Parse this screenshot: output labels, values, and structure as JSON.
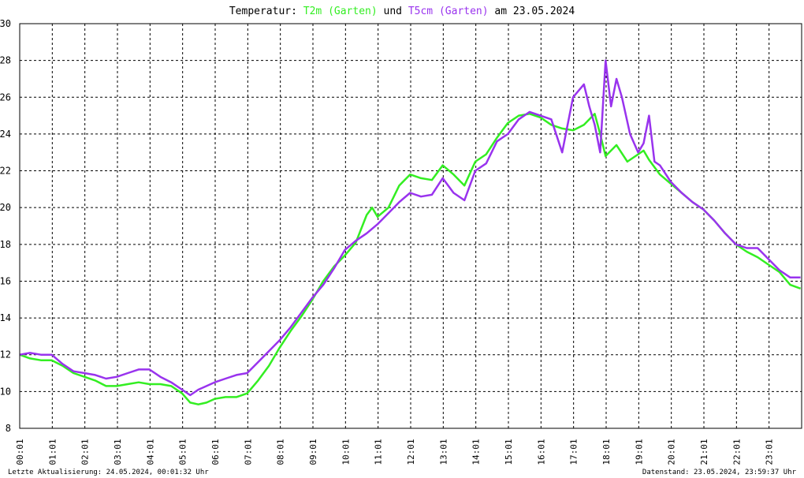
{
  "chart_data": {
    "type": "line",
    "title": {
      "prefix": "Temperatur:",
      "series1": "T2m (Garten)",
      "connector": "und",
      "series2": "T5cm (Garten)",
      "suffix": "am 23.05.2024"
    },
    "xlabel": "",
    "ylabel": "",
    "ylim": [
      8,
      30
    ],
    "xlim": [
      "00:01",
      "24:01"
    ],
    "yticks": [
      "8",
      "10",
      "12",
      "14",
      "16",
      "18",
      "20",
      "22",
      "24",
      "26",
      "28",
      "30"
    ],
    "xticks": [
      "00:01",
      "01:01",
      "02:01",
      "03:01",
      "04:01",
      "05:01",
      "06:01",
      "07:01",
      "08:01",
      "09:01",
      "10:01",
      "11:01",
      "12:01",
      "13:01",
      "14:01",
      "15:01",
      "16:01",
      "17:01",
      "18:01",
      "19:01",
      "20:01",
      "21:01",
      "22:01",
      "23:01"
    ],
    "grid": true,
    "colors": {
      "T2m (Garten)": "#33ee22",
      "T5cm (Garten)": "#9933ee"
    },
    "series": [
      {
        "name": "T2m (Garten)",
        "x": [
          "00:01",
          "00:20",
          "00:40",
          "01:00",
          "01:20",
          "01:40",
          "02:00",
          "02:20",
          "02:40",
          "03:00",
          "03:20",
          "03:40",
          "04:00",
          "04:20",
          "04:40",
          "05:00",
          "05:15",
          "05:30",
          "05:45",
          "06:00",
          "06:20",
          "06:40",
          "07:00",
          "07:20",
          "07:40",
          "08:00",
          "08:20",
          "08:40",
          "09:00",
          "09:20",
          "09:40",
          "10:00",
          "10:20",
          "10:40",
          "10:50",
          "11:00",
          "11:20",
          "11:40",
          "12:00",
          "12:20",
          "12:40",
          "13:00",
          "13:20",
          "13:40",
          "14:00",
          "14:20",
          "14:40",
          "15:00",
          "15:20",
          "15:40",
          "16:00",
          "16:20",
          "16:40",
          "17:00",
          "17:20",
          "17:40",
          "17:50",
          "18:00",
          "18:20",
          "18:40",
          "19:00",
          "19:10",
          "19:20",
          "19:40",
          "20:00",
          "20:20",
          "20:40",
          "21:00",
          "21:20",
          "21:40",
          "22:00",
          "22:20",
          "22:40",
          "23:00",
          "23:20",
          "23:40",
          "23:59"
        ],
        "values": [
          12.0,
          11.8,
          11.7,
          11.7,
          11.4,
          11.0,
          10.8,
          10.6,
          10.3,
          10.3,
          10.4,
          10.5,
          10.4,
          10.4,
          10.3,
          9.9,
          9.4,
          9.3,
          9.4,
          9.6,
          9.7,
          9.7,
          9.9,
          10.6,
          11.4,
          12.4,
          13.3,
          14.1,
          15.0,
          16.0,
          16.8,
          17.4,
          18.1,
          19.6,
          20.0,
          19.5,
          20.0,
          21.2,
          21.8,
          21.6,
          21.5,
          22.3,
          21.8,
          21.2,
          22.5,
          22.9,
          23.8,
          24.6,
          25.0,
          25.1,
          24.9,
          24.5,
          24.3,
          24.2,
          24.5,
          25.1,
          24.0,
          22.8,
          23.4,
          22.5,
          22.9,
          23.1,
          22.6,
          21.8,
          21.3,
          20.8,
          20.3,
          19.9,
          19.3,
          18.6,
          18.0,
          17.6,
          17.3,
          16.9,
          16.5,
          15.8,
          15.6
        ]
      },
      {
        "name": "T5cm (Garten)",
        "x": [
          "00:01",
          "00:20",
          "00:40",
          "01:00",
          "01:20",
          "01:40",
          "02:00",
          "02:20",
          "02:40",
          "03:00",
          "03:20",
          "03:40",
          "04:00",
          "04:20",
          "04:40",
          "05:00",
          "05:15",
          "05:30",
          "05:45",
          "06:00",
          "06:20",
          "06:40",
          "07:00",
          "07:20",
          "07:40",
          "08:00",
          "08:20",
          "08:40",
          "09:00",
          "09:20",
          "09:40",
          "10:00",
          "10:20",
          "10:40",
          "11:00",
          "11:20",
          "11:40",
          "12:00",
          "12:20",
          "12:40",
          "13:00",
          "13:20",
          "13:40",
          "14:00",
          "14:20",
          "14:40",
          "15:00",
          "15:20",
          "15:40",
          "16:00",
          "16:20",
          "16:40",
          "17:00",
          "17:20",
          "17:30",
          "17:40",
          "17:50",
          "18:00",
          "18:10",
          "18:20",
          "18:30",
          "18:45",
          "19:00",
          "19:10",
          "19:20",
          "19:30",
          "19:40",
          "20:00",
          "20:20",
          "20:40",
          "21:00",
          "21:20",
          "21:40",
          "22:00",
          "22:20",
          "22:40",
          "23:00",
          "23:20",
          "23:40",
          "23:59"
        ],
        "values": [
          12.0,
          12.1,
          12.0,
          12.0,
          11.5,
          11.1,
          11.0,
          10.9,
          10.7,
          10.8,
          11.0,
          11.2,
          11.2,
          10.8,
          10.5,
          10.1,
          9.8,
          10.1,
          10.3,
          10.5,
          10.7,
          10.9,
          11.0,
          11.6,
          12.2,
          12.8,
          13.5,
          14.3,
          15.1,
          15.8,
          16.7,
          17.7,
          18.2,
          18.6,
          19.1,
          19.7,
          20.3,
          20.8,
          20.6,
          20.7,
          21.6,
          20.8,
          20.4,
          22.0,
          22.4,
          23.6,
          24.0,
          24.8,
          25.2,
          25.0,
          24.8,
          23.0,
          26.0,
          26.7,
          25.5,
          24.5,
          23.0,
          28.0,
          25.5,
          27.0,
          26.0,
          24.0,
          23.0,
          23.5,
          25.0,
          22.5,
          22.3,
          21.4,
          20.8,
          20.3,
          19.9,
          19.3,
          18.6,
          18.0,
          17.8,
          17.8,
          17.2,
          16.6,
          16.2,
          16.2
        ]
      }
    ]
  },
  "footer": {
    "left": "Letzte Aktualisierung: 24.05.2024, 00:01:32 Uhr",
    "right": "Datenstand: 23.05.2024, 23:59:37 Uhr"
  }
}
